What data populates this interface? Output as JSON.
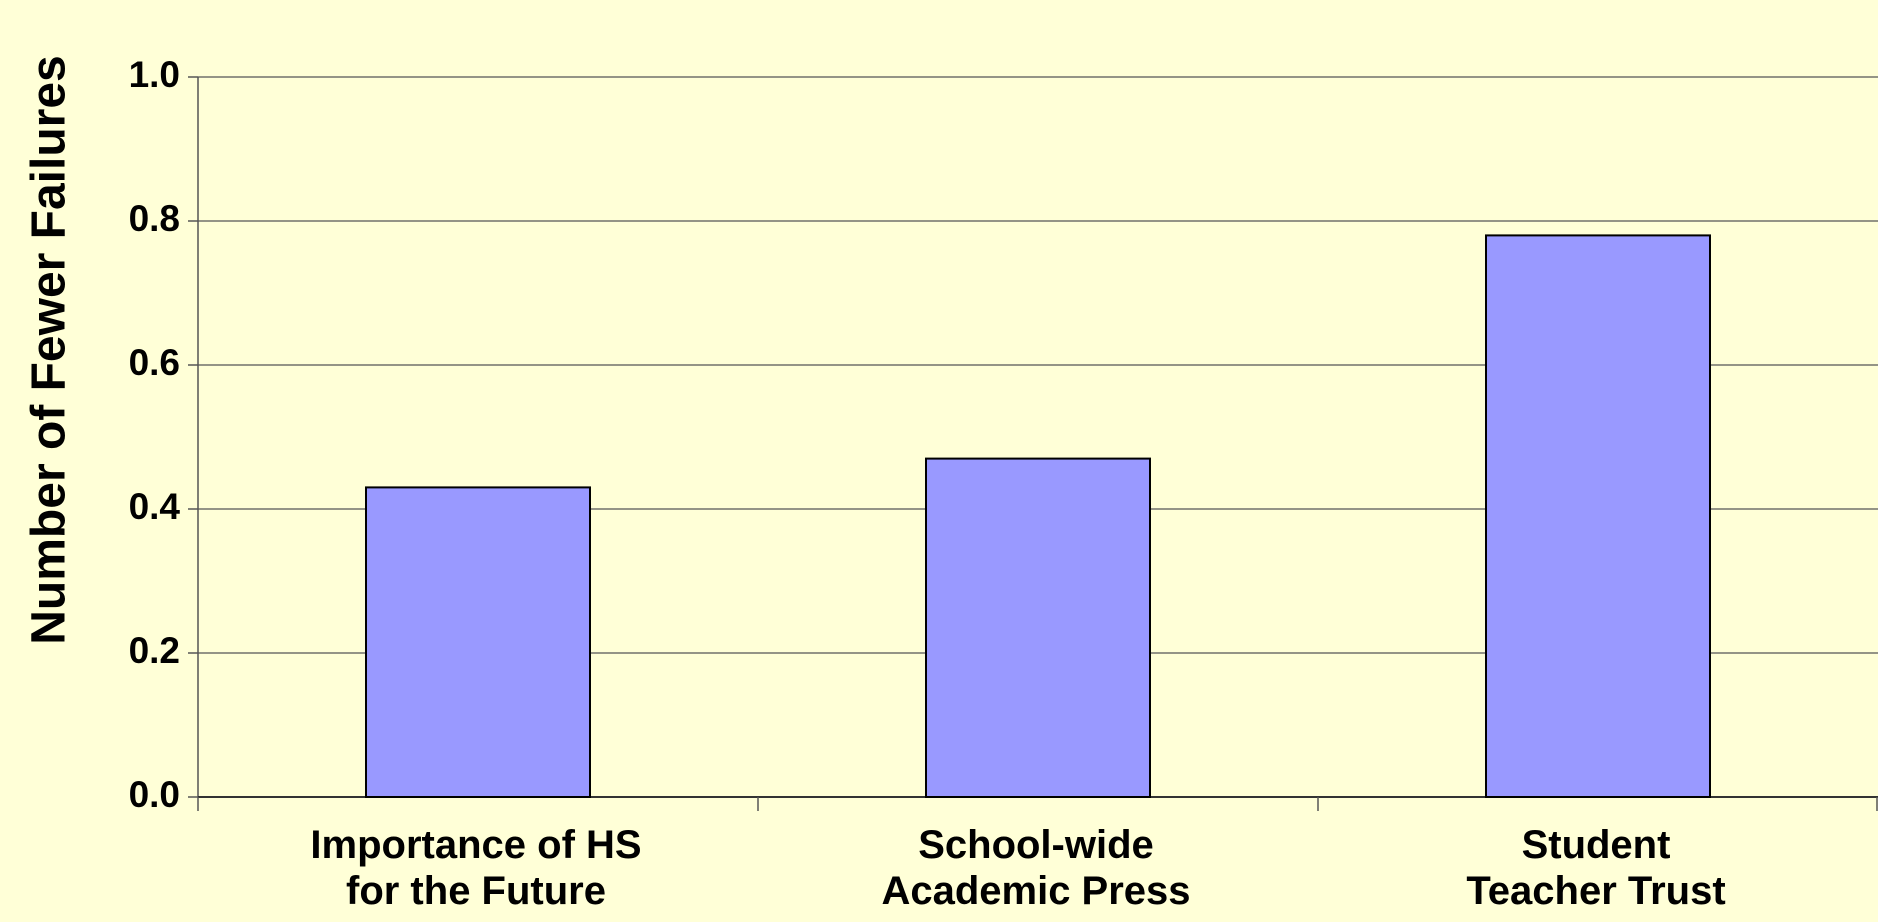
{
  "chart_data": {
    "type": "bar",
    "y_label": "Number of Fewer Failures",
    "categories": [
      "Importance of HS\nfor the Future",
      "School-wide\nAcademic Press",
      "Student\nTeacher Trust"
    ],
    "values": [
      0.43,
      0.47,
      0.78
    ],
    "color": "#9999ff",
    "ylim": [
      0,
      1
    ],
    "yticks": [
      {
        "value": 0,
        "label": "0.0"
      },
      0.2,
      0.4,
      0.6,
      0.8,
      {
        "value": 1,
        "label": "1.0"
      }
    ],
    "grid": true
  }
}
